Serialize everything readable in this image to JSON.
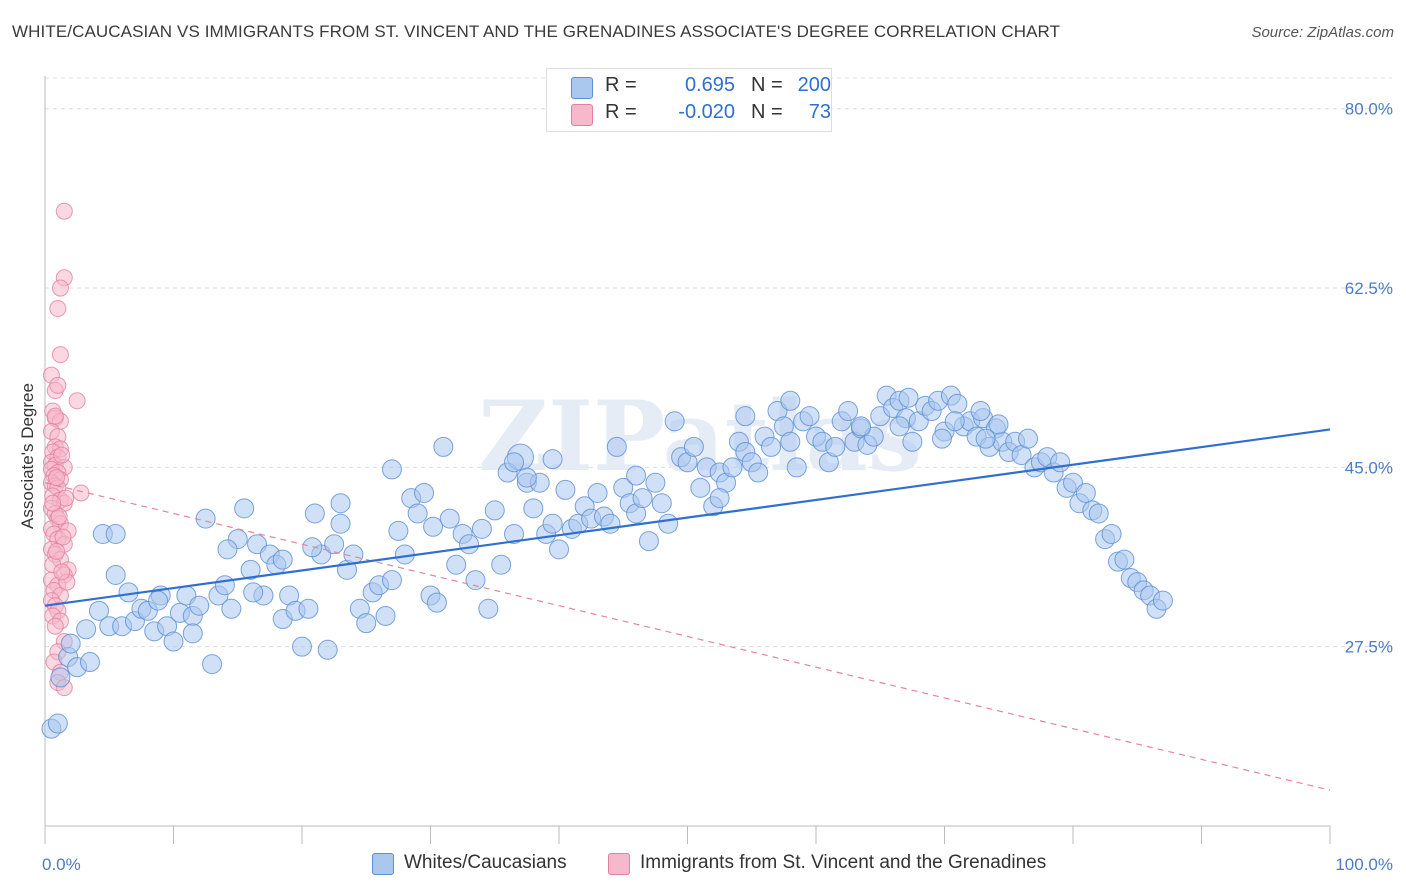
{
  "header": {
    "title": "WHITE/CAUCASIAN VS IMMIGRANTS FROM ST. VINCENT AND THE GRENADINES ASSOCIATE'S DEGREE CORRELATION CHART",
    "source": "Source: ZipAtlas.com"
  },
  "colors": {
    "blue_fill": "#aac7ee",
    "blue_stroke": "#5b8fd6",
    "blue_line": "#2f6fd0",
    "pink_fill": "#f6b8cb",
    "pink_stroke": "#e37fa0",
    "pink_line": "#e4859f",
    "grid": "#dddddd",
    "accent_text": "#4a7cc9"
  },
  "legend_top": {
    "rows": [
      {
        "r_label": "R =",
        "r_value": "0.695",
        "n_label": "N =",
        "n_value": "200",
        "color": "#aac7ee"
      },
      {
        "r_label": "R =",
        "r_value": "-0.020",
        "n_label": "N =",
        "n_value": "73",
        "color": "#f6b8cb"
      }
    ]
  },
  "legend_bottom": {
    "items": [
      {
        "label": "Whites/Caucasians",
        "color": "#aac7ee"
      },
      {
        "label": "Immigrants from St. Vincent and the Grenadines",
        "color": "#f6b8cb"
      }
    ]
  },
  "watermark": "ZIPatlas",
  "chart_data": {
    "type": "scatter",
    "title": "WHITE/CAUCASIAN VS IMMIGRANTS FROM ST. VINCENT AND THE GRENADINES ASSOCIATE'S DEGREE CORRELATION CHART",
    "xlabel": "",
    "ylabel": "Associate's Degree",
    "xlim": [
      0,
      100
    ],
    "ylim": [
      10,
      83
    ],
    "x_tick_labels": [
      "0.0%",
      "100.0%"
    ],
    "y_ticks": [
      27.5,
      45.0,
      62.5,
      80.0
    ],
    "y_tick_labels": [
      "27.5%",
      "45.0%",
      "62.5%",
      "80.0%"
    ],
    "grid": "horizontal dashed",
    "legend_position": "top-center",
    "series": [
      {
        "name": "Whites/Caucasians",
        "color": "#aac7ee",
        "r": 0.695,
        "n": 200,
        "trend": {
          "x": [
            0,
            100
          ],
          "y": [
            31.5,
            48.7
          ]
        },
        "points": [
          [
            0.5,
            19.5
          ],
          [
            1.0,
            20.0
          ],
          [
            1.2,
            24.5
          ],
          [
            1.8,
            26.5
          ],
          [
            2.0,
            27.8
          ],
          [
            2.5,
            25.5
          ],
          [
            3.2,
            29.2
          ],
          [
            3.5,
            26.0
          ],
          [
            4.2,
            31.0
          ],
          [
            4.5,
            38.5
          ],
          [
            5.0,
            29.5
          ],
          [
            5.5,
            34.5
          ],
          [
            6.0,
            29.5
          ],
          [
            6.5,
            32.8
          ],
          [
            7.0,
            30.0
          ],
          [
            7.5,
            31.2
          ],
          [
            8.0,
            31.0
          ],
          [
            8.5,
            29.0
          ],
          [
            9.0,
            32.5
          ],
          [
            9.5,
            29.5
          ],
          [
            10.0,
            28.0
          ],
          [
            10.5,
            30.8
          ],
          [
            11.0,
            32.5
          ],
          [
            11.5,
            30.5
          ],
          [
            12.0,
            31.5
          ],
          [
            12.5,
            40.0
          ],
          [
            13.0,
            25.8
          ],
          [
            13.5,
            32.5
          ],
          [
            14.0,
            33.5
          ],
          [
            14.5,
            31.2
          ],
          [
            15.0,
            38.0
          ],
          [
            15.5,
            41.0
          ],
          [
            16.0,
            35.0
          ],
          [
            16.5,
            37.5
          ],
          [
            17.0,
            32.5
          ],
          [
            17.5,
            36.5
          ],
          [
            18.0,
            35.5
          ],
          [
            18.5,
            30.2
          ],
          [
            19.0,
            32.5
          ],
          [
            19.5,
            31.0
          ],
          [
            20.0,
            27.5
          ],
          [
            20.5,
            31.2
          ],
          [
            21.0,
            40.5
          ],
          [
            21.5,
            36.5
          ],
          [
            22.0,
            27.2
          ],
          [
            22.5,
            37.5
          ],
          [
            23.0,
            41.5
          ],
          [
            23.5,
            35.0
          ],
          [
            24.0,
            36.5
          ],
          [
            24.5,
            31.2
          ],
          [
            25.0,
            29.8
          ],
          [
            25.5,
            32.8
          ],
          [
            26.0,
            33.5
          ],
          [
            26.5,
            30.5
          ],
          [
            27.0,
            34.0
          ],
          [
            27.5,
            38.8
          ],
          [
            28.0,
            36.5
          ],
          [
            28.5,
            42.0
          ],
          [
            29.0,
            40.5
          ],
          [
            29.5,
            42.5
          ],
          [
            30.0,
            32.5
          ],
          [
            30.5,
            31.8
          ],
          [
            31.0,
            47.0
          ],
          [
            31.5,
            40.0
          ],
          [
            32.0,
            35.5
          ],
          [
            32.5,
            38.5
          ],
          [
            33.0,
            37.5
          ],
          [
            33.5,
            34.0
          ],
          [
            34.0,
            39.0
          ],
          [
            34.5,
            31.2
          ],
          [
            35.0,
            40.8
          ],
          [
            35.5,
            35.5
          ],
          [
            36.0,
            44.5
          ],
          [
            36.5,
            38.5
          ],
          [
            37.0,
            46.0
          ],
          [
            37.5,
            43.5
          ],
          [
            38.0,
            41.0
          ],
          [
            38.5,
            43.5
          ],
          [
            39.0,
            38.5
          ],
          [
            39.5,
            39.5
          ],
          [
            40.0,
            37.0
          ],
          [
            40.5,
            42.8
          ],
          [
            41.0,
            39.0
          ],
          [
            41.5,
            39.5
          ],
          [
            42.0,
            41.2
          ],
          [
            42.5,
            40.0
          ],
          [
            43.0,
            42.5
          ],
          [
            43.5,
            40.2
          ],
          [
            44.0,
            39.5
          ],
          [
            44.5,
            47.0
          ],
          [
            45.0,
            43.0
          ],
          [
            45.5,
            41.5
          ],
          [
            46.0,
            40.5
          ],
          [
            46.5,
            42.0
          ],
          [
            47.0,
            37.8
          ],
          [
            47.5,
            43.5
          ],
          [
            48.0,
            41.5
          ],
          [
            48.5,
            39.5
          ],
          [
            49.0,
            49.5
          ],
          [
            49.5,
            46.0
          ],
          [
            50.0,
            45.5
          ],
          [
            50.5,
            47.0
          ],
          [
            51.0,
            43.0
          ],
          [
            51.5,
            45.0
          ],
          [
            52.0,
            41.2
          ],
          [
            52.5,
            44.5
          ],
          [
            53.0,
            43.5
          ],
          [
            53.5,
            45.0
          ],
          [
            54.0,
            47.5
          ],
          [
            54.5,
            46.5
          ],
          [
            55.0,
            45.5
          ],
          [
            55.5,
            44.5
          ],
          [
            56.0,
            48.0
          ],
          [
            56.5,
            47.0
          ],
          [
            57.0,
            50.5
          ],
          [
            57.5,
            49.0
          ],
          [
            58.0,
            47.5
          ],
          [
            58.5,
            45.0
          ],
          [
            59.0,
            49.5
          ],
          [
            59.5,
            50.0
          ],
          [
            60.0,
            48.0
          ],
          [
            60.5,
            47.5
          ],
          [
            61.0,
            45.5
          ],
          [
            61.5,
            47.0
          ],
          [
            62.0,
            49.5
          ],
          [
            62.5,
            50.5
          ],
          [
            63.0,
            47.5
          ],
          [
            63.5,
            48.8
          ],
          [
            64.0,
            47.2
          ],
          [
            64.5,
            48.0
          ],
          [
            65.0,
            50.0
          ],
          [
            65.5,
            52.0
          ],
          [
            66.0,
            50.8
          ],
          [
            66.5,
            51.5
          ],
          [
            67.0,
            49.8
          ],
          [
            67.5,
            47.5
          ],
          [
            68.0,
            49.5
          ],
          [
            68.5,
            51.0
          ],
          [
            69.0,
            50.5
          ],
          [
            69.5,
            51.5
          ],
          [
            70.0,
            48.5
          ],
          [
            70.5,
            52.0
          ],
          [
            71.0,
            51.2
          ],
          [
            71.5,
            49.0
          ],
          [
            72.0,
            49.5
          ],
          [
            72.5,
            48.0
          ],
          [
            73.0,
            49.8
          ],
          [
            73.5,
            47.0
          ],
          [
            74.0,
            48.8
          ],
          [
            74.5,
            47.5
          ],
          [
            75.0,
            46.5
          ],
          [
            75.5,
            47.5
          ],
          [
            76.0,
            46.2
          ],
          [
            76.5,
            47.8
          ],
          [
            77.0,
            45.0
          ],
          [
            77.5,
            45.5
          ],
          [
            78.0,
            46.0
          ],
          [
            78.5,
            44.5
          ],
          [
            79.0,
            45.5
          ],
          [
            79.5,
            43.0
          ],
          [
            80.0,
            43.5
          ],
          [
            80.5,
            41.5
          ],
          [
            81.0,
            42.5
          ],
          [
            81.5,
            40.8
          ],
          [
            82.0,
            40.5
          ],
          [
            82.5,
            38.0
          ],
          [
            83.0,
            38.5
          ],
          [
            83.5,
            35.8
          ],
          [
            84.0,
            36.0
          ],
          [
            84.5,
            34.2
          ],
          [
            85.0,
            33.8
          ],
          [
            85.5,
            33.0
          ],
          [
            86.0,
            32.5
          ],
          [
            86.5,
            31.2
          ],
          [
            87.0,
            32.0
          ],
          [
            36.5,
            45.5
          ],
          [
            37.5,
            44.0
          ],
          [
            39.5,
            45.8
          ],
          [
            46.0,
            44.2
          ],
          [
            52.5,
            42.0
          ],
          [
            54.5,
            50.0
          ],
          [
            58.0,
            51.5
          ],
          [
            63.5,
            49.0
          ],
          [
            66.5,
            49.0
          ],
          [
            67.2,
            51.8
          ],
          [
            69.8,
            47.8
          ],
          [
            70.8,
            49.5
          ],
          [
            74.2,
            49.2
          ],
          [
            72.8,
            50.5
          ],
          [
            73.2,
            47.8
          ],
          [
            27.0,
            44.8
          ],
          [
            23.0,
            39.5
          ],
          [
            18.5,
            36.0
          ],
          [
            11.5,
            28.8
          ],
          [
            5.5,
            38.5
          ],
          [
            8.8,
            32.0
          ],
          [
            14.2,
            37.0
          ],
          [
            16.2,
            32.8
          ],
          [
            20.8,
            37.2
          ],
          [
            30.2,
            39.2
          ]
        ]
      },
      {
        "name": "Immigrants from St. Vincent and the Grenadines",
        "color": "#f6b8cb",
        "r": -0.02,
        "n": 73,
        "trend": {
          "x": [
            0,
            100
          ],
          "y": [
            43.5,
            13.5
          ]
        },
        "points": [
          [
            1.5,
            70.0
          ],
          [
            1.5,
            63.5
          ],
          [
            1.2,
            62.5
          ],
          [
            1.0,
            60.5
          ],
          [
            1.2,
            56.0
          ],
          [
            0.5,
            54.0
          ],
          [
            0.8,
            52.5
          ],
          [
            1.0,
            53.0
          ],
          [
            2.5,
            51.5
          ],
          [
            0.6,
            50.5
          ],
          [
            0.8,
            49.8
          ],
          [
            1.2,
            49.5
          ],
          [
            0.5,
            48.5
          ],
          [
            1.0,
            48.0
          ],
          [
            0.8,
            47.0
          ],
          [
            1.2,
            46.8
          ],
          [
            0.6,
            46.5
          ],
          [
            1.0,
            46.0
          ],
          [
            0.5,
            45.5
          ],
          [
            0.8,
            45.2
          ],
          [
            1.5,
            45.0
          ],
          [
            0.5,
            44.8
          ],
          [
            1.0,
            44.5
          ],
          [
            0.7,
            44.2
          ],
          [
            1.2,
            43.8
          ],
          [
            0.5,
            43.5
          ],
          [
            0.8,
            43.2
          ],
          [
            1.0,
            43.0
          ],
          [
            2.8,
            42.5
          ],
          [
            0.6,
            42.2
          ],
          [
            1.2,
            41.8
          ],
          [
            1.5,
            41.5
          ],
          [
            0.5,
            41.0
          ],
          [
            0.8,
            40.5
          ],
          [
            1.0,
            40.0
          ],
          [
            1.2,
            39.5
          ],
          [
            0.5,
            39.0
          ],
          [
            1.8,
            38.8
          ],
          [
            0.7,
            38.5
          ],
          [
            1.0,
            38.0
          ],
          [
            1.5,
            37.5
          ],
          [
            0.5,
            37.0
          ],
          [
            0.8,
            36.5
          ],
          [
            1.2,
            36.0
          ],
          [
            0.6,
            35.5
          ],
          [
            1.8,
            35.0
          ],
          [
            1.5,
            34.5
          ],
          [
            0.5,
            34.0
          ],
          [
            1.0,
            33.5
          ],
          [
            0.7,
            33.0
          ],
          [
            1.2,
            32.5
          ],
          [
            0.5,
            32.0
          ],
          [
            0.8,
            31.5
          ],
          [
            1.0,
            31.0
          ],
          [
            0.6,
            30.5
          ],
          [
            1.2,
            30.0
          ],
          [
            0.8,
            29.5
          ],
          [
            1.5,
            28.0
          ],
          [
            1.0,
            27.0
          ],
          [
            0.7,
            26.0
          ],
          [
            1.2,
            25.0
          ],
          [
            1.0,
            24.0
          ],
          [
            1.5,
            23.5
          ],
          [
            0.8,
            50.0
          ],
          [
            1.3,
            46.2
          ],
          [
            0.9,
            44.0
          ],
          [
            1.6,
            42.0
          ],
          [
            1.1,
            40.2
          ],
          [
            1.4,
            38.2
          ],
          [
            0.9,
            36.8
          ],
          [
            1.7,
            33.8
          ],
          [
            0.6,
            41.5
          ],
          [
            1.3,
            34.8
          ]
        ]
      }
    ]
  }
}
